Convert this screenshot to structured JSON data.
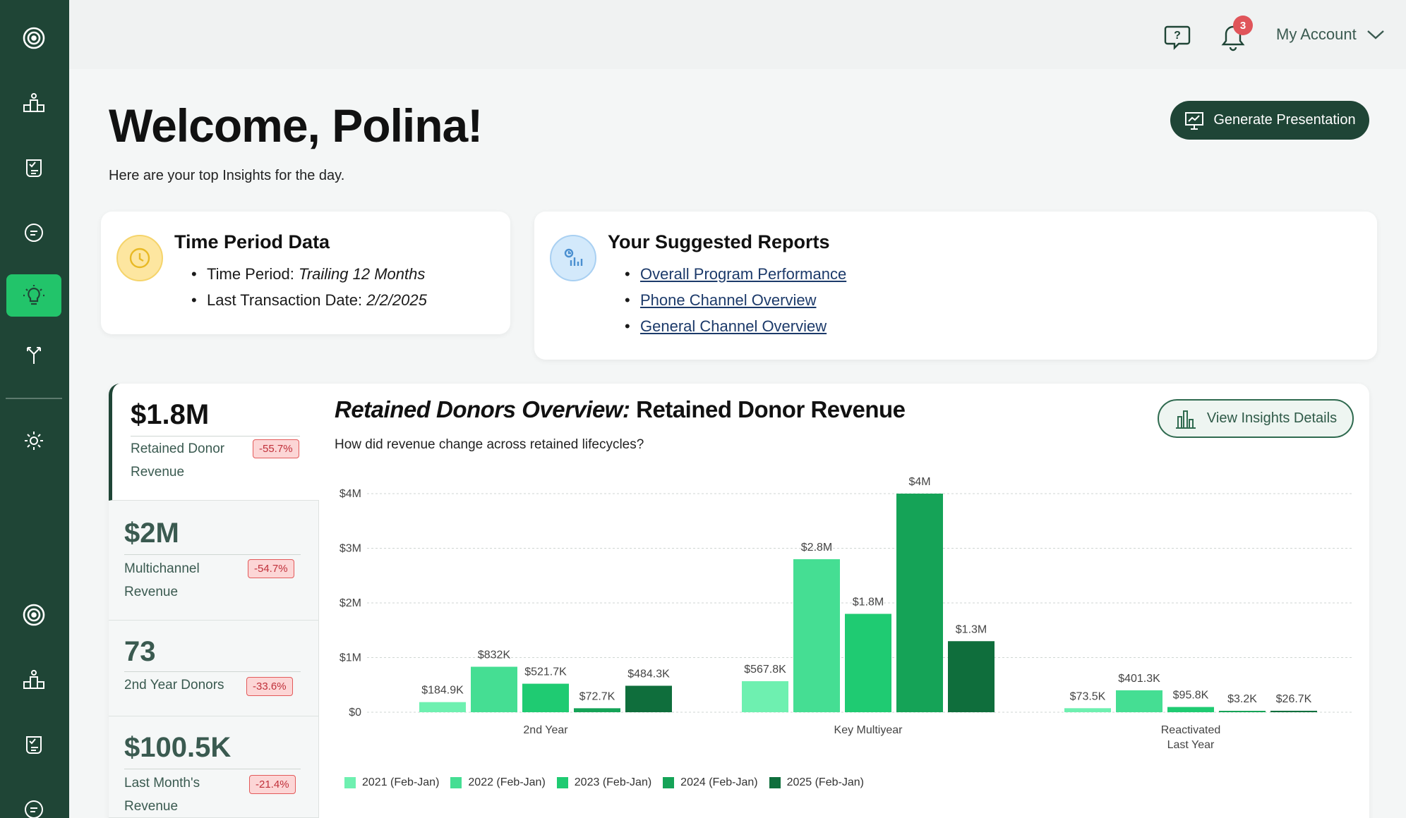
{
  "topbar": {
    "help_icon": "help-chat-icon",
    "notification_count": "3",
    "account_label": "My Account"
  },
  "welcome": {
    "title": "Welcome, Polina!",
    "subtitle": "Here are your top Insights for the day."
  },
  "generate_button": "Generate Presentation",
  "time_period_card": {
    "title": "Time Period Data",
    "period_label": "Time Period: ",
    "period_value": "Trailing 12 Months",
    "last_txn_label": "Last Transaction Date: ",
    "last_txn_value": "2/2/2025"
  },
  "reports_card": {
    "title": "Your Suggested Reports",
    "links": [
      "Overall Program Performance",
      "Phone Channel Overview",
      "General Channel Overview"
    ]
  },
  "kpis": [
    {
      "value": "$1.8M",
      "label": "Retained Donor Revenue",
      "delta": "-55.7%"
    },
    {
      "value": "$2M",
      "label": "Multichannel Revenue",
      "delta": "-54.7%"
    },
    {
      "value": "73",
      "label": "2nd Year Donors",
      "delta": "-33.6%"
    },
    {
      "value": "$100.5K",
      "label": "Last Month's Revenue",
      "delta": "-21.4%"
    }
  ],
  "insight": {
    "title_italic": "Retained Donors Overview:",
    "title_rest": " Retained Donor Revenue",
    "question": "How did revenue change across retained lifecycles?",
    "details_button": "View Insights Details"
  },
  "colors": {
    "sidebar": "#1f4536",
    "accent": "#22c46a",
    "series": [
      "#6ef0b0",
      "#45de93",
      "#1fcb72",
      "#15a357",
      "#0f6e3c"
    ]
  },
  "chart_data": {
    "type": "bar",
    "categories": [
      "2nd Year",
      "Key Multiyear",
      "Reactivated Last Year"
    ],
    "series": [
      {
        "name": "2021 (Feb-Jan)",
        "values": [
          184.9,
          567.8,
          73.5
        ],
        "labels": [
          "$184.9K",
          "$567.8K",
          "$73.5K"
        ]
      },
      {
        "name": "2022 (Feb-Jan)",
        "values": [
          832,
          2800,
          401.3
        ],
        "labels": [
          "$832K",
          "$2.8M",
          "$401.3K"
        ]
      },
      {
        "name": "2023 (Feb-Jan)",
        "values": [
          521.7,
          1800,
          95.8
        ],
        "labels": [
          "$521.7K",
          "$1.8M",
          "$95.8K"
        ]
      },
      {
        "name": "2024 (Feb-Jan)",
        "values": [
          72.7,
          4000,
          3.2
        ],
        "labels": [
          "$72.7K",
          "$4M",
          "$3.2K"
        ]
      },
      {
        "name": "2025 (Feb-Jan)",
        "values": [
          484.3,
          1300,
          26.7
        ],
        "labels": [
          "$484.3K",
          "$1.3M",
          "$26.7K"
        ]
      }
    ],
    "y_ticks": [
      "$0",
      "$1M",
      "$2M",
      "$3M",
      "$4M"
    ],
    "ylim": [
      0,
      4000
    ],
    "grid": true,
    "legend": "bottom-left"
  }
}
